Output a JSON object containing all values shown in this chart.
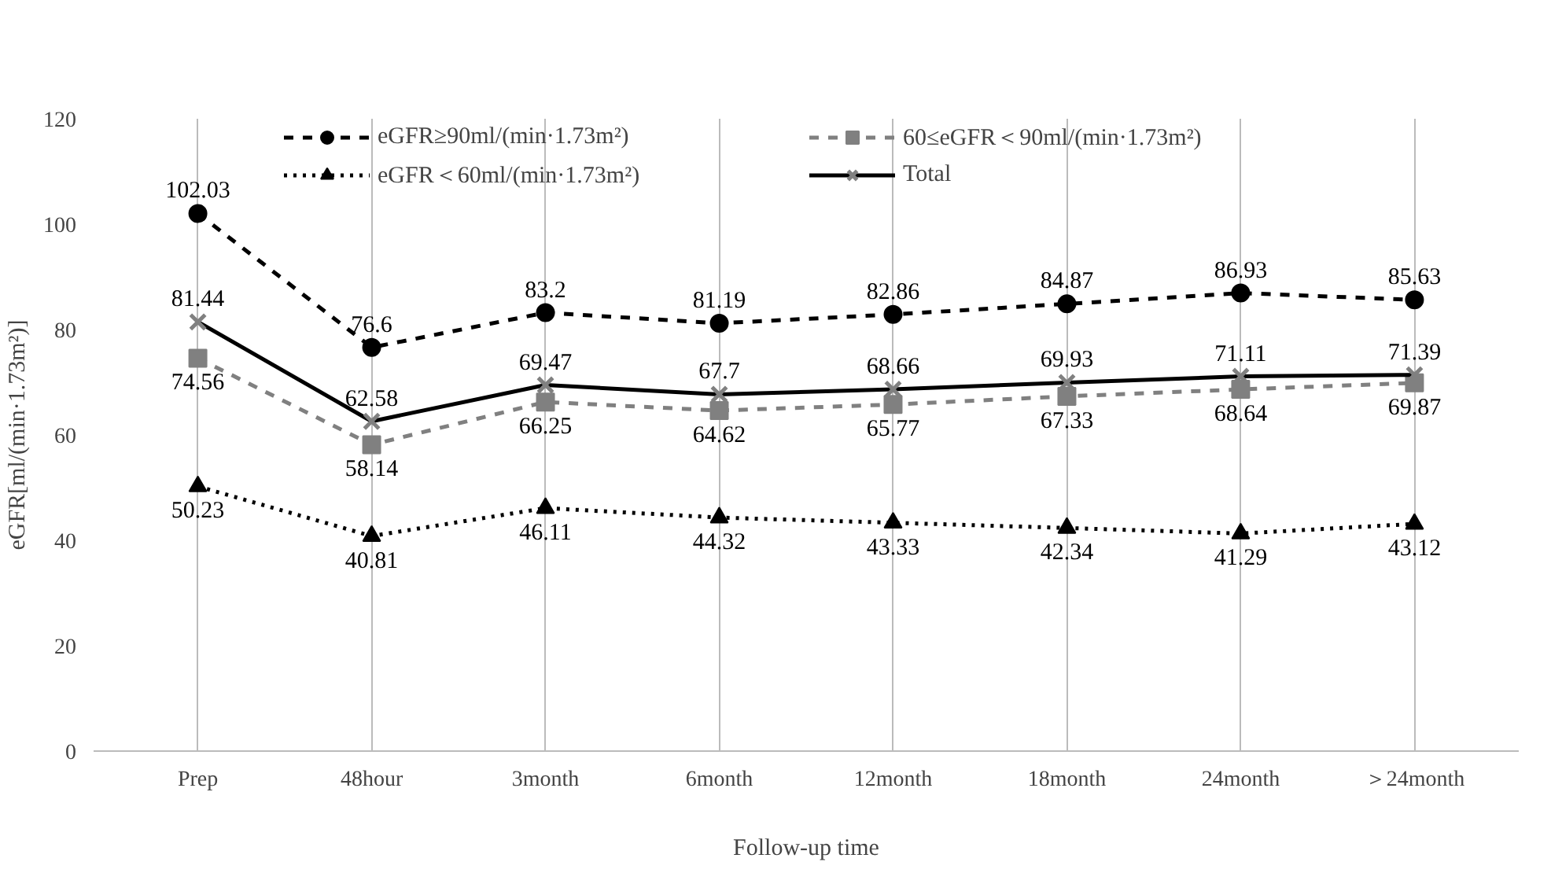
{
  "chart_data": {
    "type": "line",
    "xlabel": "Follow-up time",
    "ylabel": "eGFR[ml/(min·1.73m²)]",
    "categories": [
      "Prep",
      "48hour",
      "3month",
      "6month",
      "12month",
      "18month",
      "24month",
      "＞24month"
    ],
    "series": [
      {
        "name": "eGFR≥90ml/(min·1.73m²)",
        "color": "#000000",
        "marker": "circle",
        "line_style": "dashed",
        "values": [
          102.03,
          76.6,
          83.2,
          81.19,
          82.86,
          84.87,
          86.93,
          85.63
        ]
      },
      {
        "name": "60≤eGFR＜90ml/(min·1.73m²)",
        "color": "#808080",
        "marker": "square",
        "line_style": "dashed",
        "values": [
          74.56,
          58.14,
          66.25,
          64.62,
          65.77,
          67.33,
          68.64,
          69.87
        ]
      },
      {
        "name": "eGFR＜60ml/(min·1.73m²)",
        "color": "#000000",
        "marker": "triangle",
        "line_style": "dotted",
        "values": [
          50.23,
          40.81,
          46.11,
          44.32,
          43.33,
          42.34,
          41.29,
          43.12
        ]
      },
      {
        "name": "Total",
        "color": "#000000",
        "marker": "cross",
        "line_style": "solid",
        "values": [
          81.44,
          62.58,
          69.47,
          67.7,
          68.66,
          69.93,
          71.11,
          71.39
        ]
      }
    ],
    "ylim": [
      0,
      120
    ],
    "yticks": [
      0,
      20,
      40,
      60,
      80,
      100,
      120
    ],
    "grid": "x",
    "legend": "top",
    "data_labels": true
  }
}
